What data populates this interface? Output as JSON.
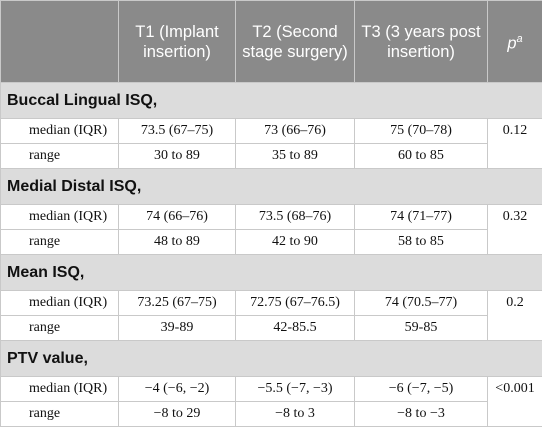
{
  "table": {
    "headers": {
      "t1": "T1 (Implant insertion)",
      "t2": "T2 (Second stage surgery)",
      "t3": "T3 (3 years post insertion)",
      "p": "p",
      "p_sup": "a"
    },
    "sections": [
      {
        "title": "Buccal Lingual ISQ,",
        "p": "0.12",
        "rows": [
          {
            "label": "median (IQR)",
            "t1": "73.5 (67–75)",
            "t2": "73 (66–76)",
            "t3": "75 (70–78)"
          },
          {
            "label": "range",
            "t1": "30 to 89",
            "t2": "35 to 89",
            "t3": "60 to 85"
          }
        ]
      },
      {
        "title": "Medial Distal ISQ,",
        "p": "0.32",
        "rows": [
          {
            "label": "median (IQR)",
            "t1": "74 (66–76)",
            "t2": "73.5 (68–76)",
            "t3": "74 (71–77)"
          },
          {
            "label": "range",
            "t1": "48 to 89",
            "t2": "42 to 90",
            "t3": "58 to 85"
          }
        ]
      },
      {
        "title": "Mean ISQ,",
        "p": "0.2",
        "rows": [
          {
            "label": "median (IQR)",
            "t1": "73.25 (67–75)",
            "t2": "72.75 (67–76.5)",
            "t3": "74 (70.5–77)"
          },
          {
            "label": "range",
            "t1": "39-89",
            "t2": "42-85.5",
            "t3": "59-85"
          }
        ]
      },
      {
        "title": "PTV value,",
        "p": "<0.001",
        "rows": [
          {
            "label": "median (IQR)",
            "t1": "−4 (−6, −2)",
            "t2": "−5.5 (−7, −3)",
            "t3": "−6 (−7, −5)"
          },
          {
            "label": "range",
            "t1": "−8 to 29",
            "t2": "−8 to 3",
            "t3": "−8 to −3"
          }
        ]
      }
    ]
  }
}
